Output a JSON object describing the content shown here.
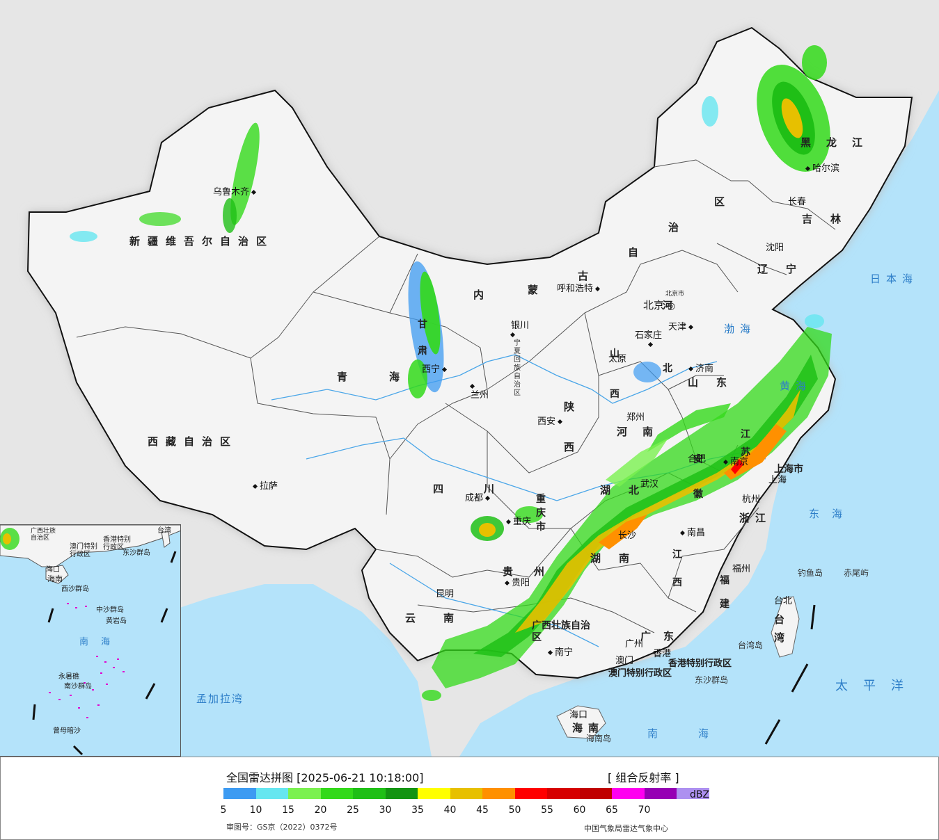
{
  "title": "全国雷达拼图 [2025-06-21 10:18:00]",
  "product": "[ 组合反射率 ]",
  "unit": "dBZ",
  "approval": "审图号：GS京（2022）0372号",
  "publisher": "中国气象局雷达气象中心",
  "legend": {
    "colors": [
      "#3d9bf2",
      "#66e6f0",
      "#7bf150",
      "#33d91a",
      "#1fbf16",
      "#139412",
      "#ffff00",
      "#e7c000",
      "#ff9000",
      "#ff0000",
      "#d60000",
      "#c00000",
      "#ff00f0",
      "#9600b4",
      "#ad90f0"
    ],
    "ticks": [
      "5",
      "10",
      "15",
      "20",
      "25",
      "30",
      "35",
      "40",
      "45",
      "50",
      "55",
      "60",
      "65",
      "70"
    ]
  },
  "provinces": [
    {
      "name": "新疆维吾尔自治区"
    },
    {
      "name": "西藏自治区"
    },
    {
      "name": "青海"
    },
    {
      "name": "四川"
    },
    {
      "name": "云南"
    },
    {
      "name": "贵州"
    },
    {
      "name": "黑龙江"
    },
    {
      "name": "吉林"
    },
    {
      "name": "辽宁"
    },
    {
      "name": "河北"
    },
    {
      "name": "山西"
    },
    {
      "name": "山东"
    },
    {
      "name": "河南"
    },
    {
      "name": "陕西"
    },
    {
      "name": "湖北"
    },
    {
      "name": "湖南"
    },
    {
      "name": "江西"
    },
    {
      "name": "福建"
    },
    {
      "name": "浙江"
    },
    {
      "name": "安徽"
    },
    {
      "name": "江苏"
    },
    {
      "name": "广东"
    },
    {
      "name": "海南"
    },
    {
      "name": "台湾"
    },
    {
      "name": "甘肃"
    },
    {
      "name": "重庆市"
    },
    {
      "name": "上海市"
    },
    {
      "name": "广西壮族自治区"
    },
    {
      "name": "宁夏回族自治区"
    }
  ],
  "inner_mongolia_chars": [
    "内",
    "蒙",
    "古",
    "自",
    "治",
    "区"
  ],
  "cities": [
    {
      "name": "乌鲁木齐"
    },
    {
      "name": "拉萨"
    },
    {
      "name": "西宁"
    },
    {
      "name": "兰州"
    },
    {
      "name": "银川"
    },
    {
      "name": "呼和浩特"
    },
    {
      "name": "北京"
    },
    {
      "name": "北京市"
    },
    {
      "name": "天津"
    },
    {
      "name": "石家庄"
    },
    {
      "name": "太原"
    },
    {
      "name": "济南"
    },
    {
      "name": "郑州"
    },
    {
      "name": "西安"
    },
    {
      "name": "成都"
    },
    {
      "name": "重庆"
    },
    {
      "name": "贵阳"
    },
    {
      "name": "昆明"
    },
    {
      "name": "南宁"
    },
    {
      "name": "广州"
    },
    {
      "name": "长沙"
    },
    {
      "name": "武汉"
    },
    {
      "name": "合肥"
    },
    {
      "name": "南京"
    },
    {
      "name": "上海"
    },
    {
      "name": "杭州"
    },
    {
      "name": "南昌"
    },
    {
      "name": "福州"
    },
    {
      "name": "台北"
    },
    {
      "name": "海口"
    },
    {
      "name": "哈尔滨"
    },
    {
      "name": "长春"
    },
    {
      "name": "沈阳"
    },
    {
      "name": "香港"
    },
    {
      "name": "澳门"
    }
  ],
  "seas": [
    {
      "name": "日本海"
    },
    {
      "name": "渤海"
    },
    {
      "name": "黄海"
    },
    {
      "name": "东海"
    },
    {
      "name": "太平洋"
    },
    {
      "name": "南海"
    },
    {
      "name": "孟加拉湾"
    }
  ],
  "islands": [
    {
      "name": "钓鱼岛"
    },
    {
      "name": "赤尾屿"
    },
    {
      "name": "台湾岛"
    },
    {
      "name": "东沙群岛"
    },
    {
      "name": "海南岛"
    }
  ],
  "special_regions": [
    {
      "name": "香港特别行政区"
    },
    {
      "name": "澳门特别行政区"
    }
  ],
  "inset_labels": [
    {
      "name": "广西壮族自治区"
    },
    {
      "name": "台湾"
    },
    {
      "name": "香港特别行政区"
    },
    {
      "name": "澳门特别行政区"
    },
    {
      "name": "东沙群岛"
    },
    {
      "name": "海口"
    },
    {
      "name": "海南"
    },
    {
      "name": "西沙群岛"
    },
    {
      "name": "中沙群岛"
    },
    {
      "name": "黄岩岛"
    },
    {
      "name": "南海"
    },
    {
      "name": "永暑礁"
    },
    {
      "name": "南沙群岛"
    },
    {
      "name": "曾母暗沙"
    }
  ]
}
